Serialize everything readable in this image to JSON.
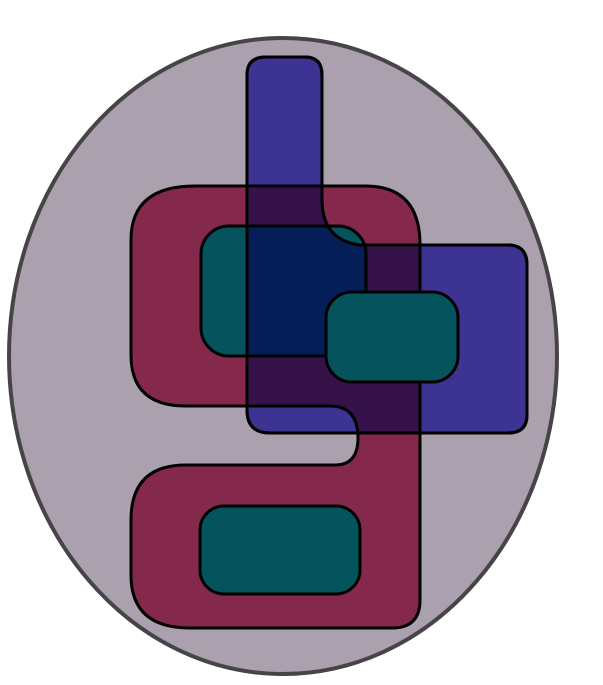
{
  "colors": {
    "background": "#ffffff",
    "ellipse_fill": "#aba0ae",
    "ellipse_stroke": "#474447",
    "crimson": "#85294c",
    "indigo": "#3c3393",
    "teal": "#04535d",
    "overlap_crimson_indigo": "#36124a",
    "overlap_teal_indigo": "#041e58",
    "outline": "#000000"
  },
  "shapes": [
    {
      "name": "outer-ellipse",
      "color": "ellipse_fill"
    },
    {
      "name": "crimson-shape",
      "color": "crimson"
    },
    {
      "name": "indigo-shape",
      "color": "indigo"
    },
    {
      "name": "teal-rect-upper-left",
      "color": "teal"
    },
    {
      "name": "teal-rect-center",
      "color": "teal"
    },
    {
      "name": "teal-rect-lower",
      "color": "teal"
    }
  ]
}
